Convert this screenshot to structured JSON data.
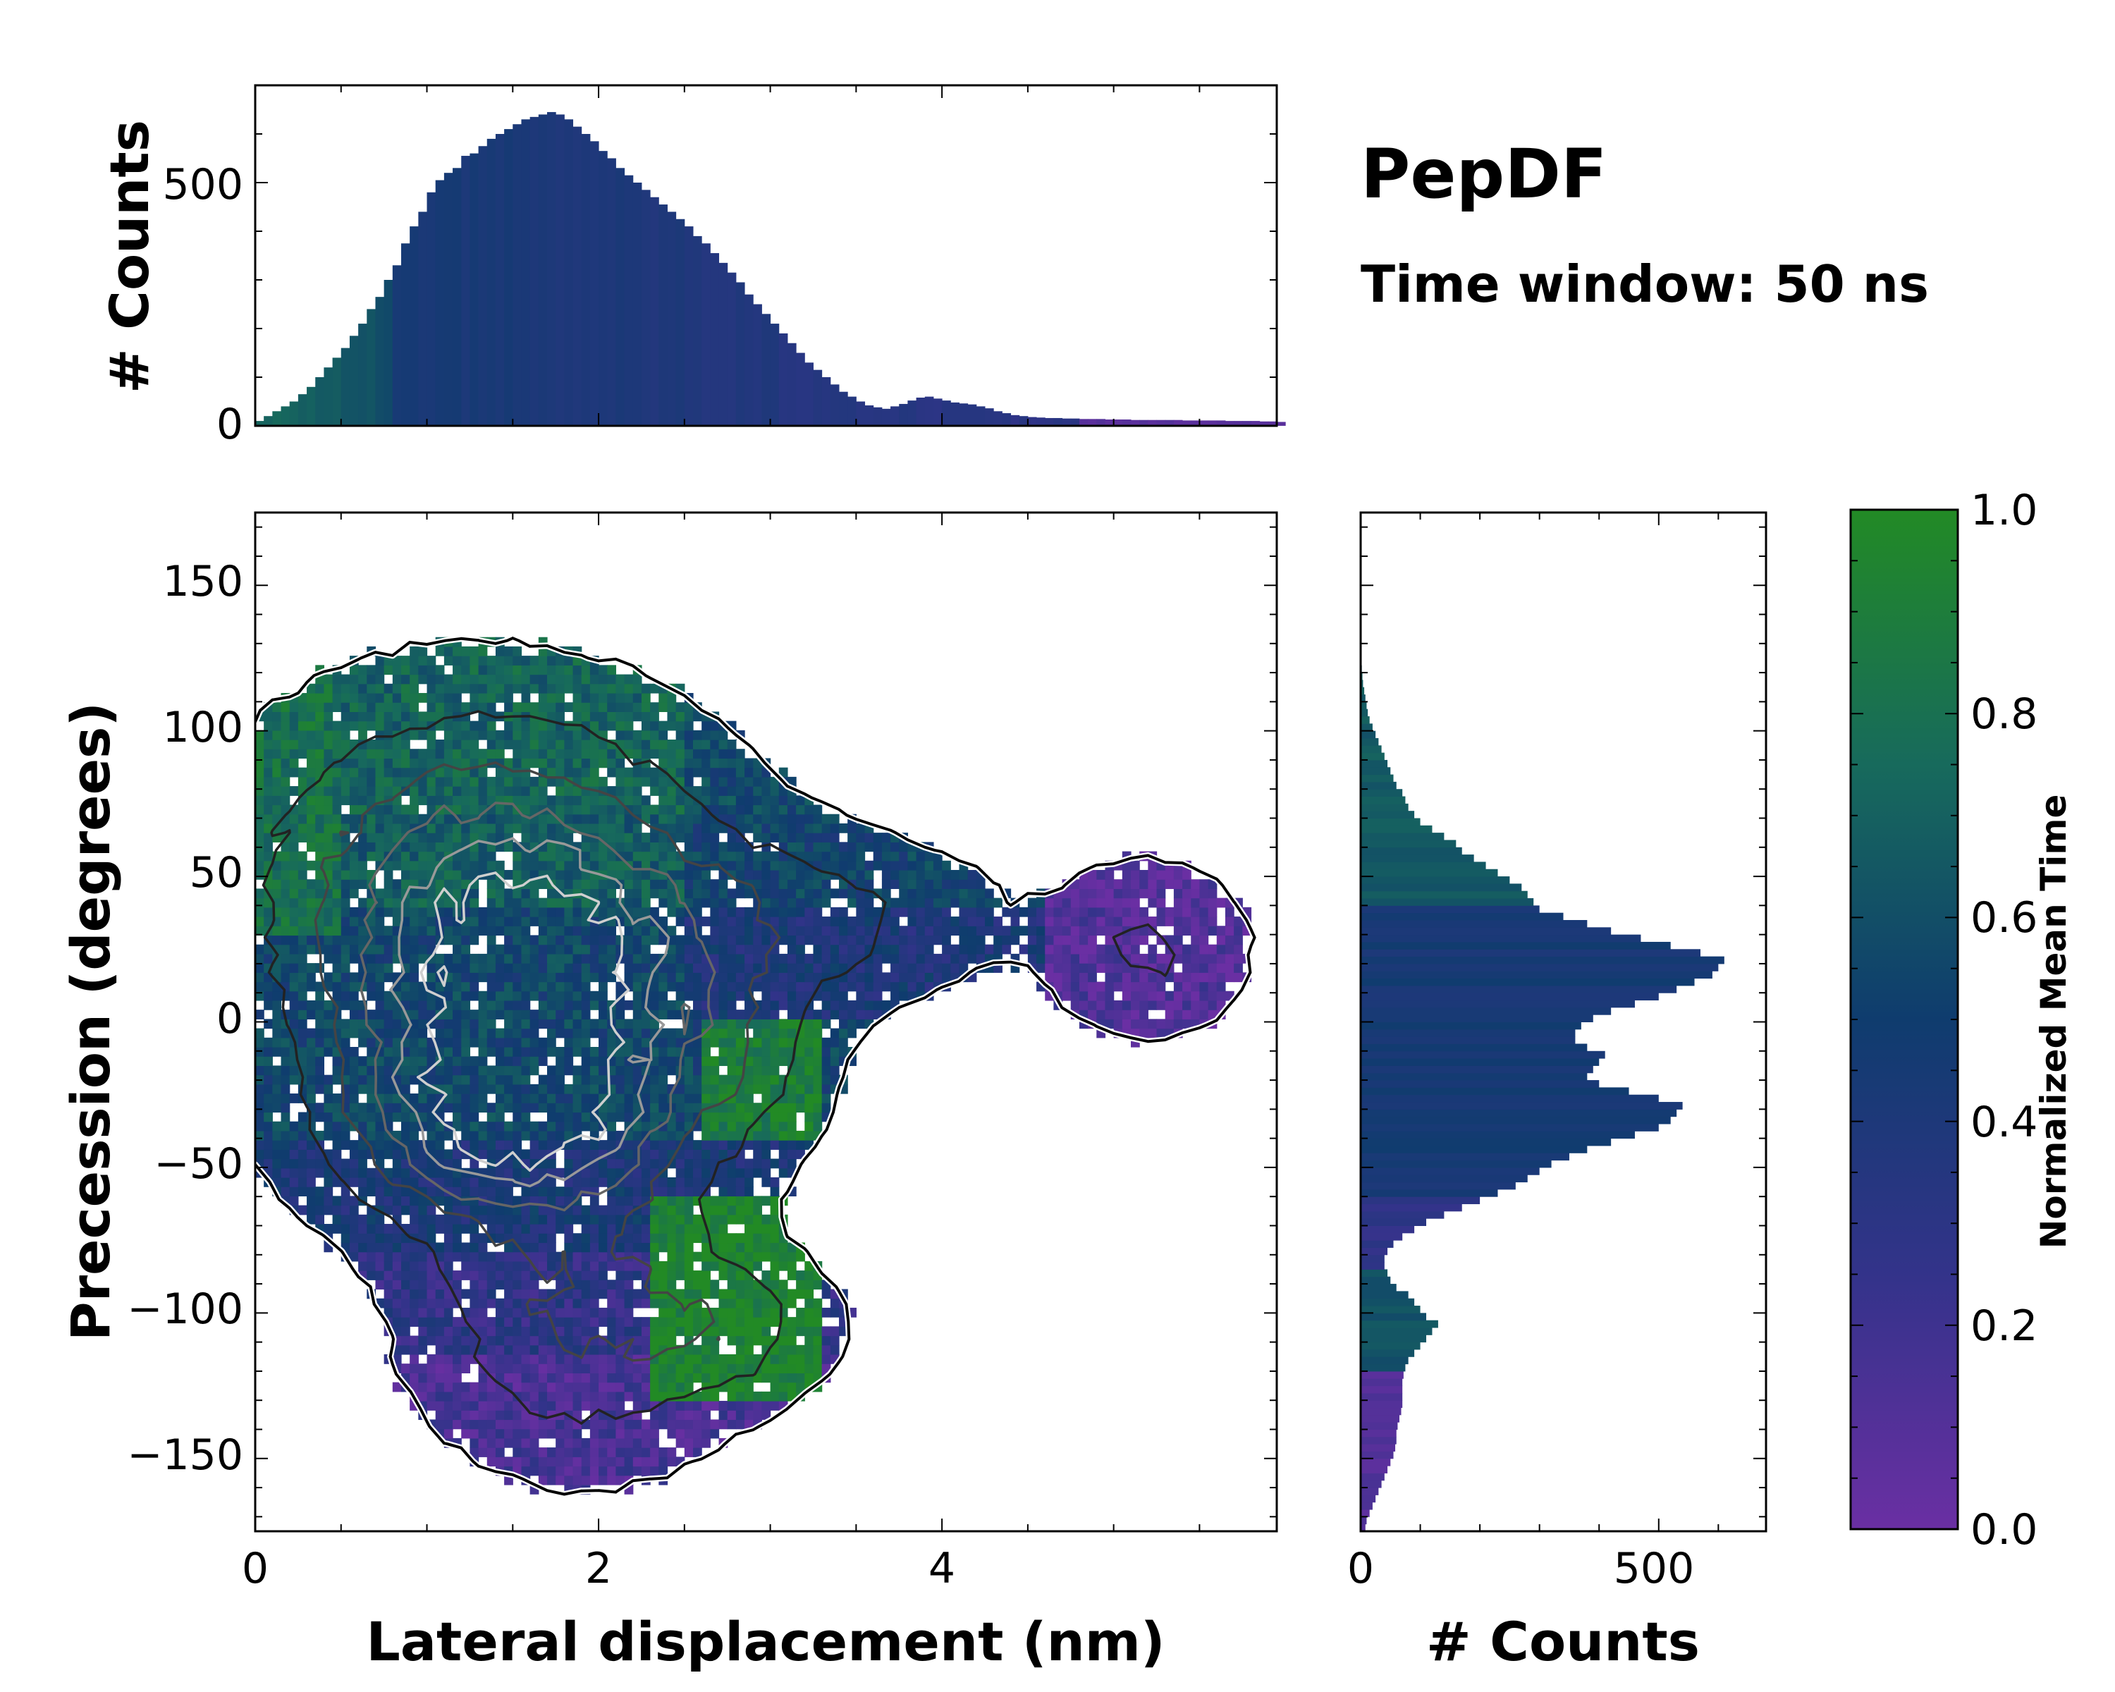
{
  "annotation": {
    "title": "PepDF",
    "subtitle": "Time window: 50 ns"
  },
  "colors": {
    "cmap_low": "#6a2fa3",
    "cmap_mid_low": "#33338a",
    "cmap_mid": "#0f3c6e",
    "cmap_mid_high": "#176a5c",
    "cmap_high": "#228a25",
    "contour_dark": "#111111",
    "contour_light": "#cfcfcf"
  },
  "chart_data": [
    {
      "id": "top-histogram",
      "type": "bar",
      "ylabel": "# Counts",
      "xlim": [
        0,
        5.95
      ],
      "ylim": [
        0,
        700
      ],
      "yticks": [
        0,
        500
      ],
      "ytick_labels": [
        "0",
        "500"
      ],
      "xticks": [
        0,
        2,
        4
      ],
      "bin_width": 0.05,
      "x_start": 0,
      "values": [
        10,
        20,
        30,
        40,
        50,
        65,
        80,
        100,
        120,
        140,
        160,
        185,
        210,
        240,
        265,
        300,
        330,
        375,
        410,
        440,
        480,
        505,
        520,
        530,
        555,
        560,
        575,
        590,
        600,
        610,
        620,
        630,
        635,
        640,
        645,
        640,
        630,
        615,
        600,
        585,
        565,
        550,
        530,
        515,
        500,
        485,
        470,
        455,
        440,
        425,
        410,
        390,
        375,
        355,
        335,
        315,
        295,
        270,
        250,
        230,
        210,
        190,
        170,
        150,
        130,
        115,
        100,
        85,
        70,
        60,
        50,
        42,
        38,
        35,
        40,
        45,
        52,
        58,
        60,
        56,
        52,
        48,
        46,
        44,
        40,
        36,
        30,
        26,
        22,
        20,
        18,
        17,
        16,
        16,
        15,
        15,
        14,
        14,
        14,
        13,
        13,
        13,
        12,
        12,
        12,
        12,
        12,
        12,
        11,
        11,
        11,
        11,
        11,
        10,
        10,
        10,
        10,
        9,
        9,
        8
      ],
      "value_colors": "green for x<0.8, dark blue 1-3.5, purple for x>4.9"
    },
    {
      "id": "main-2d-histogram",
      "type": "heatmap",
      "title": "",
      "xlabel": "Lateral displacement (nm)",
      "ylabel": "Precession (degrees)",
      "xlim": [
        0,
        5.95
      ],
      "ylim": [
        -175,
        175
      ],
      "xticks": [
        0,
        2,
        4
      ],
      "xtick_labels": [
        "0",
        "2",
        "4"
      ],
      "yticks": [
        150,
        100,
        50,
        0,
        -50,
        -100,
        -150
      ],
      "ytick_labels": [
        "150",
        "100",
        "50",
        "0",
        "−50",
        "−100",
        "−150"
      ],
      "cells_description": "Binned counts colored by normalized mean time with contour overlay",
      "blobs": [
        {
          "x": 1.6,
          "y": 10,
          "sx": 0.7,
          "sy": 35,
          "w": 1.0
        },
        {
          "x": 1.5,
          "y": -35,
          "sx": 0.6,
          "sy": 22,
          "w": 0.8
        },
        {
          "x": 1.3,
          "y": 55,
          "sx": 0.8,
          "sy": 35,
          "w": 0.5
        },
        {
          "x": 1.9,
          "y": -100,
          "sx": 0.55,
          "sy": 30,
          "w": 0.4
        },
        {
          "x": 3.1,
          "y": 35,
          "sx": 0.7,
          "sy": 18,
          "w": 0.25
        },
        {
          "x": 5.2,
          "y": 25,
          "sx": 0.35,
          "sy": 18,
          "w": 0.22
        },
        {
          "x": 2.7,
          "y": -105,
          "sx": 0.4,
          "sy": 15,
          "w": 0.25
        },
        {
          "x": 2.8,
          "y": -10,
          "sx": 0.3,
          "sy": 20,
          "w": 0.18
        }
      ]
    },
    {
      "id": "right-histogram",
      "type": "bar",
      "orientation": "horizontal",
      "xlabel": "# Counts",
      "xlim": [
        0,
        680
      ],
      "ylim": [
        -175,
        175
      ],
      "xticks": [
        0,
        500
      ],
      "xtick_labels": [
        "0",
        "500"
      ],
      "bin_width_deg": 2.5,
      "y_start": -175,
      "values": [
        8,
        10,
        15,
        20,
        25,
        30,
        35,
        40,
        45,
        50,
        55,
        58,
        60,
        60,
        62,
        65,
        68,
        70,
        70,
        70,
        70,
        72,
        75,
        80,
        90,
        100,
        110,
        120,
        130,
        110,
        100,
        90,
        80,
        60,
        50,
        45,
        40,
        40,
        45,
        55,
        70,
        90,
        110,
        140,
        170,
        200,
        230,
        260,
        280,
        300,
        320,
        350,
        380,
        420,
        460,
        500,
        520,
        530,
        540,
        500,
        450,
        400,
        380,
        390,
        400,
        410,
        380,
        360,
        360,
        370,
        390,
        420,
        460,
        500,
        530,
        560,
        590,
        600,
        610,
        570,
        520,
        470,
        420,
        380,
        340,
        300,
        290,
        280,
        270,
        250,
        230,
        210,
        190,
        170,
        160,
        140,
        120,
        100,
        90,
        80,
        75,
        70,
        60,
        55,
        50,
        45,
        40,
        35,
        30,
        25,
        20,
        15,
        12,
        10,
        8,
        6,
        4,
        3,
        2,
        1
      ],
      "value_colors": "purple at y<-120, green-blue -120 to -90, blue around 0, teal above 40"
    },
    {
      "id": "colorbar",
      "type": "colorbar",
      "label": "Normalized Mean Time",
      "range": [
        0.0,
        1.0
      ],
      "ticks": [
        0.0,
        0.2,
        0.4,
        0.6,
        0.8,
        1.0
      ],
      "tick_labels": [
        "0.0",
        "0.2",
        "0.4",
        "0.6",
        "0.8",
        "1.0"
      ]
    }
  ]
}
